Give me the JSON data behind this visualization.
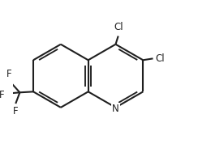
{
  "bg_color": "#ffffff",
  "bond_color": "#1f1f1f",
  "bond_lw": 1.5,
  "atom_color": "#1f1f1f",
  "font_size": 8.5,
  "RCx": 6.15,
  "RCy": 3.55,
  "BL": 1.22,
  "xlim": [
    2.2,
    9.8
  ],
  "ylim": [
    1.2,
    6.2
  ],
  "figw": 2.6,
  "figh": 1.78,
  "dpi": 100
}
